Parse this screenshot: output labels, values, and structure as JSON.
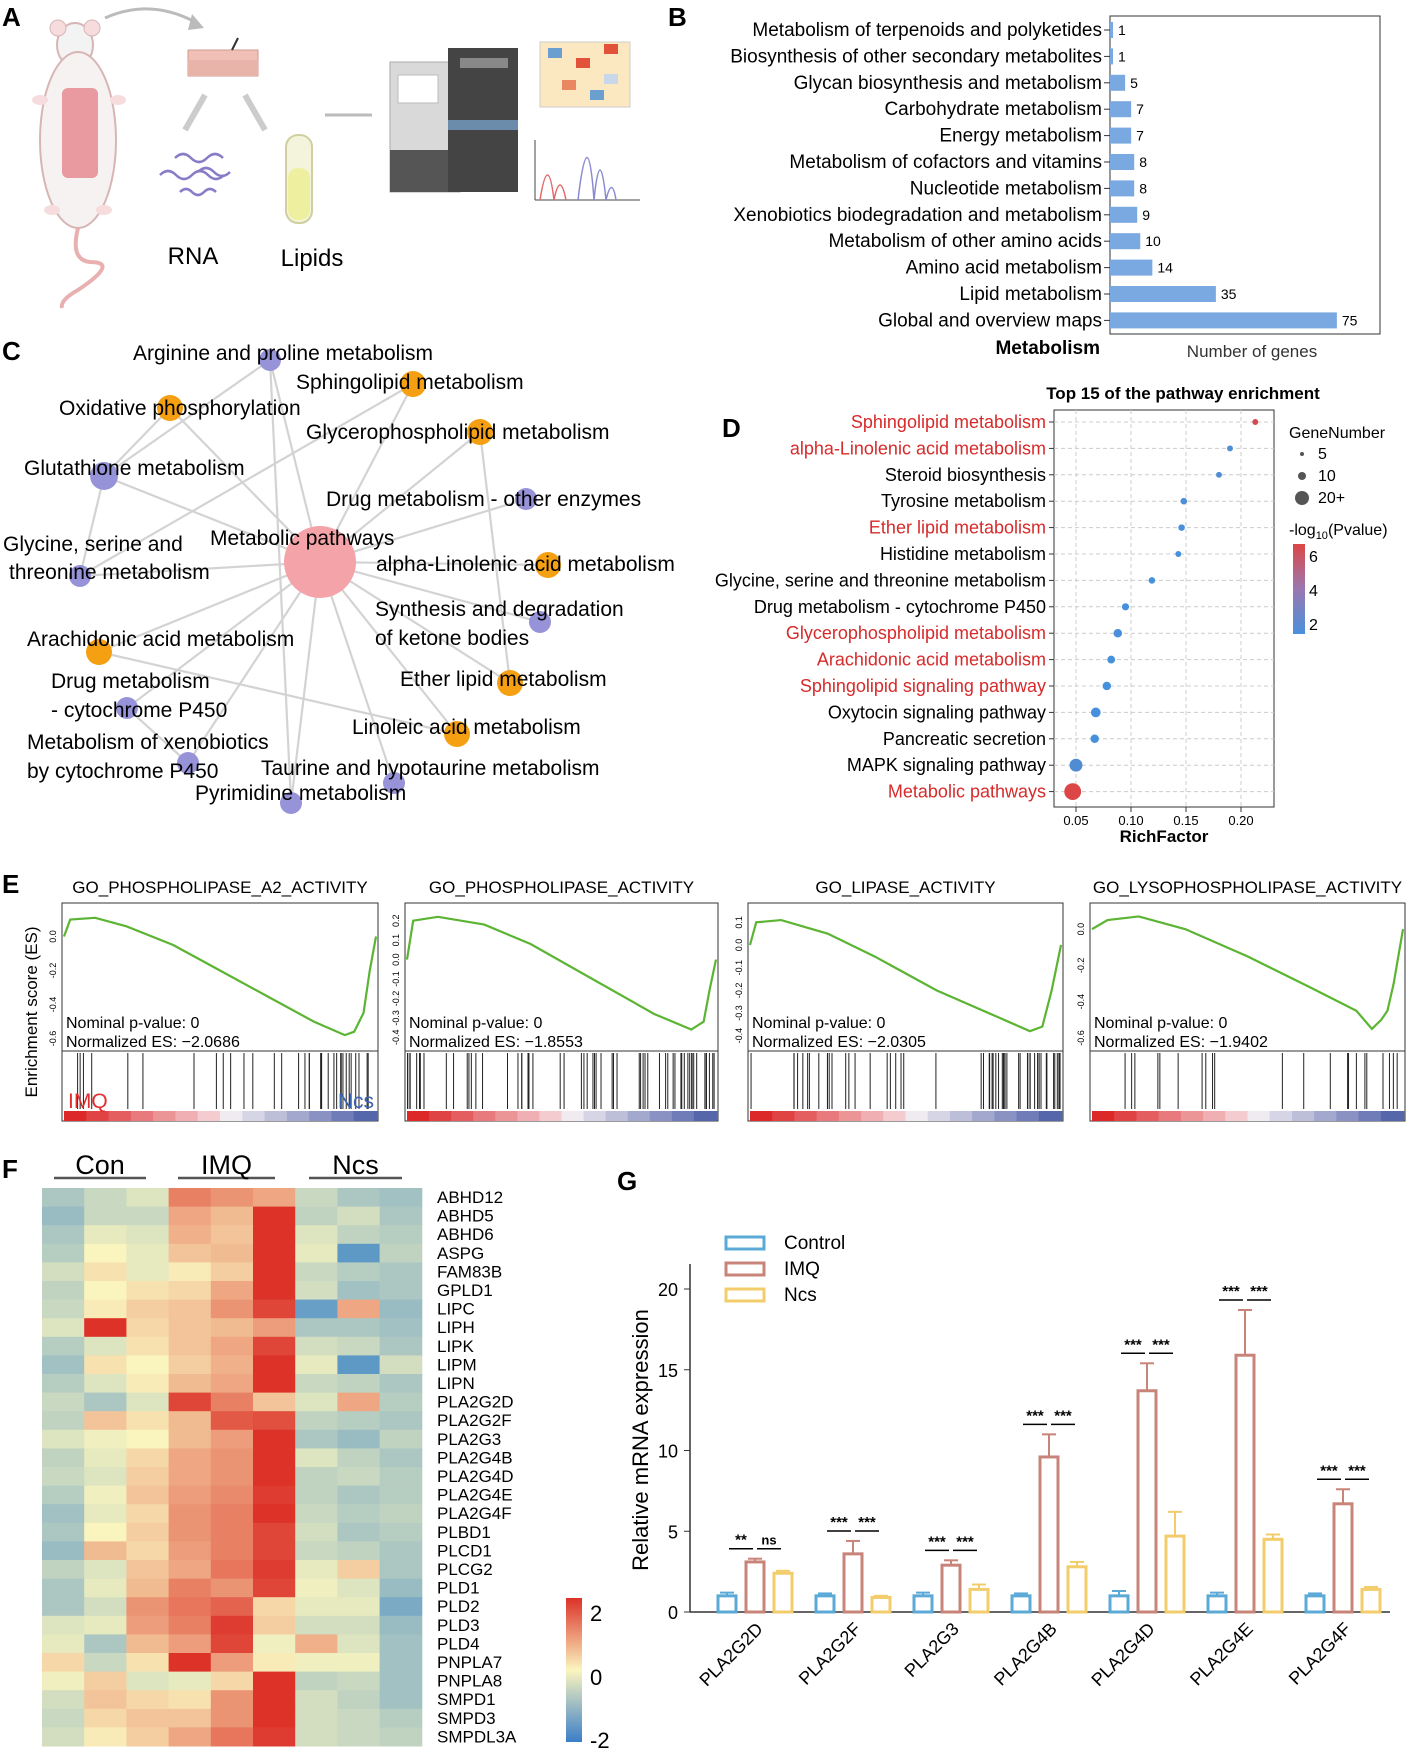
{
  "panel_labels": {
    "a": "A",
    "b": "B",
    "c": "C",
    "d": "D",
    "e": "E",
    "f": "F",
    "g": "G"
  },
  "panel_a": {
    "rna": "RNA",
    "lipids": "Lipids"
  },
  "colors": {
    "bar_blue": "#7aa8e0",
    "network_orange": "#f5a013",
    "network_purple": "#9793d8",
    "network_center": "#f4a3a8",
    "gsea_green": "#5bb432",
    "red_text": "#d72a2a",
    "control": "#5aa9d6",
    "imq": "#c9847a",
    "ncs": "#f3cd6b"
  },
  "chart_data": [
    {
      "id": "B",
      "type": "bar",
      "orientation": "horizontal",
      "category_label": "Metabolism",
      "xlabel": "Number of genes",
      "categories": [
        "Metabolism of terpenoids and polyketides",
        "Biosynthesis of other secondary metabolites",
        "Glycan biosynthesis and metabolism",
        "Carbohydrate metabolism",
        "Energy metabolism",
        "Metabolism of cofactors and vitamins",
        "Nucleotide metabolism",
        "Xenobiotics biodegradation and metabolism",
        "Metabolism of other amino acids",
        "Amino acid metabolism",
        "Lipid metabolism",
        "Global and overview maps"
      ],
      "values": [
        1,
        1,
        5,
        7,
        7,
        8,
        8,
        9,
        10,
        14,
        35,
        75
      ],
      "xlim": [
        0,
        80
      ]
    },
    {
      "id": "C",
      "type": "network",
      "center": "Metabolic pathways",
      "nodes": [
        {
          "label": "Arginine and proline metabolism",
          "group": "purple"
        },
        {
          "label": "Sphingolipid metabolism",
          "group": "orange"
        },
        {
          "label": "Oxidative phosphorylation",
          "group": "orange"
        },
        {
          "label": "Glycerophospholipid metabolism",
          "group": "orange"
        },
        {
          "label": "Glutathione metabolism",
          "group": "purple"
        },
        {
          "label": "Drug metabolism - other enzymes",
          "group": "purple"
        },
        {
          "label": "Glycine, serine and threonine metabolism",
          "group": "purple"
        },
        {
          "label": "alpha-Linolenic acid metabolism",
          "group": "orange"
        },
        {
          "label": "Synthesis and degradation of ketone bodies",
          "group": "purple"
        },
        {
          "label": "Arachidonic acid metabolism",
          "group": "orange"
        },
        {
          "label": "Ether lipid metabolism",
          "group": "orange"
        },
        {
          "label": "Drug metabolism - cytochrome P450",
          "group": "purple"
        },
        {
          "label": "Linoleic acid metabolism",
          "group": "orange"
        },
        {
          "label": "Metabolism of xenobiotics by cytochrome P450",
          "group": "purple"
        },
        {
          "label": "Taurine and hypotaurine metabolism",
          "group": "purple"
        },
        {
          "label": "Pyrimidine metabolism",
          "group": "purple"
        }
      ],
      "extra_edges": [
        [
          "Glutathione metabolism",
          "Glycine, serine and threonine metabolism"
        ],
        [
          "Oxidative phosphorylation",
          "Glutathione metabolism"
        ],
        [
          "Arginine and proline metabolism",
          "Glutathione metabolism"
        ],
        [
          "Glycerophospholipid metabolism",
          "Ether lipid metabolism"
        ],
        [
          "Arachidonic acid metabolism",
          "Linoleic acid metabolism"
        ],
        [
          "Drug metabolism - cytochrome P450",
          "Metabolism of xenobiotics by cytochrome P450"
        ],
        [
          "Sphingolipid metabolism",
          "Glycine, serine and threonine metabolism"
        ],
        [
          "Arginine and proline metabolism",
          "Pyrimidine metabolism"
        ]
      ]
    },
    {
      "id": "D",
      "type": "scatter",
      "title": "Top 15 of the pathway enrichment",
      "xlabel": "RichFactor",
      "xlim": [
        0.03,
        0.23
      ],
      "xticks": [
        "0.05",
        "0.10",
        "0.15",
        "0.20"
      ],
      "pathways": [
        {
          "name": "Sphingolipid metabolism",
          "rich": 0.213,
          "genes": 3,
          "logp": 6.2,
          "red": true
        },
        {
          "name": "alpha-Linolenic acid metabolism",
          "rich": 0.19,
          "genes": 3,
          "logp": 2.2,
          "red": true
        },
        {
          "name": "Steroid biosynthesis",
          "rich": 0.18,
          "genes": 3,
          "logp": 2.2,
          "red": false
        },
        {
          "name": "Tyrosine metabolism",
          "rich": 0.148,
          "genes": 4,
          "logp": 2.2,
          "red": false
        },
        {
          "name": "Ether lipid metabolism",
          "rich": 0.146,
          "genes": 4,
          "logp": 2.1,
          "red": true
        },
        {
          "name": "Histidine metabolism",
          "rich": 0.143,
          "genes": 3,
          "logp": 2.0,
          "red": false
        },
        {
          "name": "Glycine, serine and threonine metabolism",
          "rich": 0.119,
          "genes": 4,
          "logp": 2.0,
          "red": false
        },
        {
          "name": "Drug metabolism - cytochrome P450",
          "rich": 0.095,
          "genes": 5,
          "logp": 2.0,
          "red": false
        },
        {
          "name": "Glycerophospholipid metabolism",
          "rich": 0.088,
          "genes": 7,
          "logp": 2.1,
          "red": true
        },
        {
          "name": "Arachidonic acid metabolism",
          "rich": 0.082,
          "genes": 6,
          "logp": 2.0,
          "red": true
        },
        {
          "name": "Sphingolipid signaling pathway",
          "rich": 0.078,
          "genes": 7,
          "logp": 2.0,
          "red": true
        },
        {
          "name": "Oxytocin signaling pathway",
          "rich": 0.068,
          "genes": 9,
          "logp": 2.0,
          "red": false
        },
        {
          "name": "Pancreatic secretion",
          "rich": 0.067,
          "genes": 7,
          "logp": 2.0,
          "red": false
        },
        {
          "name": "MAPK signaling pathway",
          "rich": 0.05,
          "genes": 14,
          "logp": 2.3,
          "red": false
        },
        {
          "name": "Metabolic pathways",
          "rich": 0.047,
          "genes": 20,
          "logp": 6.5,
          "red": true
        }
      ],
      "legend_size_title": "GeneNumber",
      "legend_sizes": [
        "5",
        "10",
        "20+"
      ],
      "legend_color_title": "-log10(Pvalue)",
      "legend_color_ticks": [
        "6",
        "4",
        "2"
      ]
    },
    {
      "id": "E",
      "type": "line",
      "ylabel": "Enrichment score (ES)",
      "left_group": "IMQ",
      "right_group": "Ncs",
      "plots": [
        {
          "title": "GO_PHOSPHOLIPASE_A2_ACTIVITY",
          "pvalue": "Nominal p-value: 0",
          "nes": "Normalized ES: −2.0686",
          "ymin": -0.65,
          "ymax": 0.15,
          "yticks": [
            "0.0",
            "-0.2",
            "-0.4",
            "-0.6"
          ],
          "ytick_values": [
            0,
            -0.2,
            -0.4,
            -0.6
          ],
          "es": [
            [
              0,
              0.0
            ],
            [
              0.02,
              0.1
            ],
            [
              0.1,
              0.11
            ],
            [
              0.2,
              0.06
            ],
            [
              0.35,
              -0.05
            ],
            [
              0.5,
              -0.2
            ],
            [
              0.65,
              -0.35
            ],
            [
              0.8,
              -0.5
            ],
            [
              0.9,
              -0.58
            ],
            [
              0.93,
              -0.56
            ],
            [
              0.96,
              -0.45
            ],
            [
              0.98,
              -0.2
            ],
            [
              1,
              0.0
            ]
          ]
        },
        {
          "title": "GO_PHOSPHOLIPASE_ACTIVITY",
          "pvalue": "Nominal p-value: 0",
          "nes": "Normalized ES: −1.8553",
          "ymin": -0.45,
          "ymax": 0.25,
          "yticks": [
            "0.2",
            "0.1",
            "0.0",
            "-0.1",
            "-0.2",
            "-0.3",
            "-0.4"
          ],
          "ytick_values": [
            0.2,
            0.1,
            0,
            -0.1,
            -0.2,
            -0.3,
            -0.4
          ],
          "es": [
            [
              0,
              0.0
            ],
            [
              0.02,
              0.2
            ],
            [
              0.1,
              0.22
            ],
            [
              0.25,
              0.18
            ],
            [
              0.4,
              0.08
            ],
            [
              0.6,
              -0.1
            ],
            [
              0.8,
              -0.28
            ],
            [
              0.92,
              -0.36
            ],
            [
              0.96,
              -0.32
            ],
            [
              0.98,
              -0.15
            ],
            [
              1,
              0.0
            ]
          ]
        },
        {
          "title": "GO_LIPASE_ACTIVITY",
          "pvalue": "Nominal p-value: 0",
          "nes": "Normalized ES: −2.0305",
          "ymin": -0.45,
          "ymax": 0.15,
          "yticks": [
            "0.1",
            "0.0",
            "-0.1",
            "-0.2",
            "-0.3",
            "-0.4"
          ],
          "ytick_values": [
            0.1,
            0,
            -0.1,
            -0.2,
            -0.3,
            -0.4
          ],
          "es": [
            [
              0,
              0.0
            ],
            [
              0.02,
              0.1
            ],
            [
              0.1,
              0.11
            ],
            [
              0.25,
              0.05
            ],
            [
              0.4,
              -0.05
            ],
            [
              0.6,
              -0.2
            ],
            [
              0.8,
              -0.32
            ],
            [
              0.9,
              -0.38
            ],
            [
              0.94,
              -0.36
            ],
            [
              0.97,
              -0.2
            ],
            [
              1,
              0.0
            ]
          ]
        },
        {
          "title": "GO_LYSOPHOSPHOLIPASE_ACTIVITY",
          "pvalue": "Nominal p-value: 0",
          "nes": "Normalized ES: −1.9402",
          "ymin": -0.65,
          "ymax": 0.1,
          "yticks": [
            "0.0",
            "-0.2",
            "-0.4",
            "-0.6"
          ],
          "ytick_values": [
            0,
            -0.2,
            -0.4,
            -0.6
          ],
          "es": [
            [
              0,
              0.0
            ],
            [
              0.05,
              0.05
            ],
            [
              0.15,
              0.07
            ],
            [
              0.3,
              0.0
            ],
            [
              0.5,
              -0.15
            ],
            [
              0.7,
              -0.32
            ],
            [
              0.85,
              -0.45
            ],
            [
              0.9,
              -0.55
            ],
            [
              0.93,
              -0.5
            ],
            [
              0.95,
              -0.45
            ],
            [
              0.97,
              -0.3
            ],
            [
              0.99,
              -0.1
            ],
            [
              1,
              0.0
            ]
          ]
        }
      ]
    },
    {
      "id": "F",
      "type": "heatmap",
      "groups": [
        "Con",
        "IMQ",
        "Ncs"
      ],
      "genes": [
        "ABHD12",
        "ABHD5",
        "ABHD6",
        "ASPG",
        "FAM83B",
        "GPLD1",
        "LIPC",
        "LIPH",
        "LIPK",
        "LIPM",
        "LIPN",
        "PLA2G2D",
        "PLA2G2F",
        "PLA2G3",
        "PLA2G4B",
        "PLA2G4D",
        "PLA2G4E",
        "PLA2G4F",
        "PLBD1",
        "PLCD1",
        "PLCG2",
        "PLD1",
        "PLD2",
        "PLD3",
        "PLD4",
        "PNPLA7",
        "PNPLA8",
        "SMPD1",
        "SMPD3",
        "SMPDL3A"
      ],
      "values": [
        [
          -0.8,
          -0.5,
          -0.3,
          1.2,
          1.0,
          0.8,
          -0.5,
          -0.8,
          -0.9
        ],
        [
          -1.0,
          -0.5,
          -0.5,
          0.8,
          0.6,
          2.0,
          -0.6,
          -0.4,
          -0.8
        ],
        [
          -0.8,
          -0.2,
          -0.3,
          0.7,
          0.5,
          2.0,
          -0.3,
          -0.6,
          -0.7
        ],
        [
          -0.7,
          0.0,
          -0.2,
          0.5,
          0.6,
          2.0,
          -0.2,
          -1.6,
          -0.6
        ],
        [
          -0.4,
          0.2,
          -0.2,
          0.1,
          0.4,
          2.2,
          -0.5,
          -0.7,
          -0.8
        ],
        [
          -0.6,
          0.0,
          0.2,
          0.3,
          0.8,
          2.0,
          -0.4,
          -0.9,
          -0.8
        ],
        [
          -0.5,
          0.1,
          0.4,
          0.5,
          1.0,
          1.8,
          -1.5,
          0.8,
          -1.0
        ],
        [
          -0.3,
          2.0,
          0.3,
          0.5,
          0.6,
          0.9,
          -0.8,
          -0.8,
          -0.9
        ],
        [
          -0.7,
          -0.3,
          0.2,
          0.5,
          0.8,
          1.8,
          -0.4,
          -0.5,
          -0.8
        ],
        [
          -0.9,
          0.2,
          0.0,
          0.4,
          0.7,
          2.0,
          -0.2,
          -1.6,
          -0.4
        ],
        [
          -0.7,
          -0.3,
          0.1,
          0.6,
          0.8,
          2.0,
          -0.5,
          -0.6,
          -0.8
        ],
        [
          -0.5,
          -0.8,
          -0.3,
          1.8,
          1.2,
          0.5,
          -0.3,
          0.8,
          -0.7
        ],
        [
          -0.6,
          0.5,
          0.2,
          0.6,
          1.6,
          1.7,
          -0.6,
          -0.7,
          -0.8
        ],
        [
          -0.3,
          -0.1,
          0.0,
          0.6,
          0.9,
          2.0,
          -0.8,
          -1.0,
          -0.6
        ],
        [
          -0.6,
          -0.2,
          0.3,
          0.8,
          1.0,
          2.0,
          -0.3,
          -0.6,
          -0.8
        ],
        [
          -0.5,
          -0.3,
          0.4,
          0.8,
          1.0,
          2.1,
          -0.6,
          -0.5,
          -0.7
        ],
        [
          -0.7,
          -0.1,
          0.5,
          0.9,
          1.1,
          1.9,
          -0.6,
          -0.8,
          -0.7
        ],
        [
          -0.9,
          -0.2,
          0.3,
          1.0,
          1.2,
          2.0,
          -0.5,
          -0.7,
          -0.6
        ],
        [
          -0.8,
          0.0,
          0.4,
          1.0,
          1.2,
          1.8,
          -0.4,
          -0.8,
          -0.7
        ],
        [
          -1.0,
          0.6,
          0.3,
          0.9,
          1.2,
          1.8,
          -0.5,
          -0.6,
          -0.8
        ],
        [
          -0.6,
          -0.3,
          0.5,
          0.8,
          1.3,
          1.9,
          -0.2,
          0.4,
          -0.8
        ],
        [
          -0.8,
          -0.2,
          0.6,
          1.2,
          1.0,
          1.8,
          -0.1,
          -0.3,
          -1.0
        ],
        [
          -0.8,
          -0.4,
          1.0,
          1.3,
          1.5,
          0.3,
          -0.2,
          -0.2,
          -1.3
        ],
        [
          -0.3,
          -0.2,
          0.9,
          1.2,
          1.9,
          0.4,
          -0.4,
          -0.4,
          -1.0
        ],
        [
          -0.2,
          -0.8,
          0.6,
          0.9,
          1.8,
          -0.1,
          0.7,
          -0.3,
          -0.9
        ],
        [
          0.3,
          -0.5,
          0.2,
          2.0,
          0.9,
          0.1,
          -0.1,
          -0.1,
          -0.9
        ],
        [
          -0.1,
          0.4,
          -0.3,
          -0.2,
          0.3,
          2.2,
          -0.6,
          -0.5,
          -0.9
        ],
        [
          -0.4,
          0.5,
          0.3,
          0.2,
          1.0,
          2.0,
          -0.4,
          -0.6,
          -0.9
        ],
        [
          -0.5,
          0.3,
          0.5,
          0.5,
          1.0,
          2.0,
          -0.4,
          -0.5,
          -0.7
        ],
        [
          -0.4,
          0.1,
          0.4,
          0.8,
          1.3,
          1.9,
          -0.4,
          -0.5,
          -0.6
        ]
      ],
      "scale_ticks": [
        "2",
        "0",
        "-2"
      ],
      "scale_range": [
        -2,
        2
      ]
    },
    {
      "id": "G",
      "type": "bar",
      "ylabel": "Relative mRNA expression",
      "ylim": [
        0,
        22
      ],
      "yticks": [
        0,
        5,
        10,
        15,
        20
      ],
      "categories": [
        "PLA2G2D",
        "PLA2G2F",
        "PLA2G3",
        "PLA2G4B",
        "PLA2G4D",
        "PLA2G4E",
        "PLA2G4F"
      ],
      "series": [
        {
          "name": "Control",
          "values": [
            1.0,
            1.0,
            1.0,
            1.0,
            1.0,
            1.0,
            1.0
          ],
          "errors": [
            0.2,
            0.15,
            0.2,
            0.15,
            0.3,
            0.2,
            0.15
          ]
        },
        {
          "name": "IMQ",
          "values": [
            3.1,
            3.6,
            2.9,
            9.6,
            13.7,
            15.9,
            6.7
          ],
          "errors": [
            0.2,
            0.8,
            0.3,
            1.4,
            1.7,
            2.8,
            0.9
          ]
        },
        {
          "name": "Ncs",
          "values": [
            2.4,
            0.9,
            1.4,
            2.8,
            4.7,
            4.5,
            1.4
          ],
          "errors": [
            0.15,
            0.1,
            0.3,
            0.3,
            1.5,
            0.3,
            0.15
          ]
        }
      ],
      "significance": [
        [
          "**",
          "ns"
        ],
        [
          "***",
          "***"
        ],
        [
          "***",
          "***"
        ],
        [
          "***",
          "***"
        ],
        [
          "***",
          "***"
        ],
        [
          "***",
          "***"
        ],
        [
          "***",
          "***"
        ]
      ]
    }
  ]
}
